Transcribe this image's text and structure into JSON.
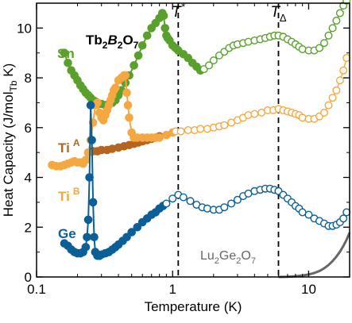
{
  "chart_data": {
    "type": "scatter",
    "title": "Tb2B2O7",
    "title_parts": {
      "pre": "Tb",
      "s1": "2",
      "mid": "B",
      "s2": "2",
      "post": "O",
      "s3": "7"
    },
    "xlabel": "Temperature (K)",
    "ylabel_parts": {
      "main": "Heat Capacity (J/mol",
      "sub": "Tb",
      "end": " K)"
    },
    "x_scale": "log",
    "xlim": [
      0.1,
      20
    ],
    "ylim": [
      0,
      11
    ],
    "x_ticks": [
      0.1,
      1,
      10
    ],
    "x_tick_labels": [
      "0.1",
      "1",
      "10"
    ],
    "y_ticks": [
      0,
      2,
      4,
      6,
      8,
      10
    ],
    "y_tick_labels": [
      "0",
      "2",
      "4",
      "6",
      "8",
      "10"
    ],
    "grid": false,
    "vlines": [
      {
        "x": 1.1,
        "label_main": "T",
        "label_sup": "*"
      },
      {
        "x": 6.0,
        "label_main": "T",
        "label_sub": "Δ"
      }
    ],
    "colors": {
      "Sn": "#5aa02c",
      "TiA": "#b5651d",
      "TiB": "#f5a742",
      "Ge": "#0a5f96",
      "Lu": "#666666",
      "axis": "#000000"
    },
    "series": [
      {
        "name": "Sn",
        "key": "Sn",
        "filled": {
          "x": [
            0.16,
            0.17,
            0.18,
            0.19,
            0.2,
            0.21,
            0.22,
            0.23,
            0.24,
            0.25,
            0.26,
            0.27,
            0.28,
            0.3,
            0.32,
            0.34,
            0.36,
            0.38,
            0.4,
            0.42,
            0.45,
            0.48,
            0.52,
            0.56,
            0.6,
            0.65,
            0.7,
            0.75,
            0.8,
            0.84,
            0.86,
            0.88,
            0.9,
            0.92,
            0.95,
            1.0,
            1.05,
            1.1,
            1.2,
            1.3,
            1.4,
            1.5,
            1.6
          ],
          "y": [
            9.0,
            8.6,
            8.3,
            8.1,
            7.9,
            7.7,
            7.55,
            7.4,
            7.3,
            7.2,
            7.1,
            7.05,
            7.0,
            6.95,
            6.9,
            6.95,
            7.0,
            7.1,
            7.3,
            7.5,
            7.8,
            8.1,
            8.5,
            8.9,
            9.3,
            9.7,
            10.0,
            10.2,
            10.4,
            10.6,
            10.5,
            10.0,
            9.7,
            9.6,
            9.5,
            9.3,
            9.2,
            9.1,
            8.95,
            8.8,
            8.6,
            8.45,
            8.3
          ]
        },
        "open": {
          "x": [
            1.7,
            1.85,
            2.0,
            2.2,
            2.4,
            2.6,
            2.8,
            3.0,
            3.3,
            3.6,
            4.0,
            4.4,
            4.8,
            5.2,
            5.6,
            6.0,
            6.5,
            7.0,
            7.5,
            8.0,
            8.5,
            9.0,
            10.0,
            11.0,
            12.0,
            13.0,
            14.0,
            15.0,
            16.0,
            17.0,
            18.0,
            19.0
          ],
          "y": [
            8.35,
            8.5,
            8.7,
            8.9,
            9.05,
            9.2,
            9.3,
            9.35,
            9.4,
            9.45,
            9.5,
            9.55,
            9.6,
            9.65,
            9.7,
            9.7,
            9.65,
            9.55,
            9.45,
            9.35,
            9.25,
            9.15,
            9.1,
            9.1,
            9.2,
            9.4,
            9.7,
            10.0,
            10.3,
            10.6,
            10.9,
            11.1
          ]
        }
      },
      {
        "name": "Ti",
        "name_sup": "A",
        "key": "TiA",
        "filled": {
          "x": [
            0.24,
            0.26,
            0.28,
            0.3,
            0.33,
            0.36,
            0.4,
            0.44,
            0.48,
            0.52,
            0.56,
            0.6,
            0.65,
            0.7,
            0.75,
            0.8
          ],
          "y": [
            5.0,
            5.05,
            5.05,
            5.1,
            5.1,
            5.15,
            5.2,
            5.25,
            5.3,
            5.35,
            5.4,
            5.45,
            5.5,
            5.55,
            5.6,
            5.65
          ]
        }
      },
      {
        "name": "Ti",
        "name_sup": "B",
        "key": "TiB",
        "filled": {
          "x": [
            0.13,
            0.14,
            0.15,
            0.16,
            0.17,
            0.18,
            0.19,
            0.2,
            0.21,
            0.22,
            0.23,
            0.24,
            0.25,
            0.26,
            0.27,
            0.28,
            0.29,
            0.3,
            0.31,
            0.32,
            0.33,
            0.34,
            0.35,
            0.36,
            0.37,
            0.38,
            0.4,
            0.42,
            0.44,
            0.45,
            0.46,
            0.47,
            0.48,
            0.5,
            0.52,
            0.55,
            0.6,
            0.65,
            0.7,
            0.75,
            0.8,
            0.9,
            1.0
          ],
          "y": [
            4.5,
            4.45,
            4.45,
            4.5,
            4.55,
            4.6,
            4.65,
            4.6,
            4.6,
            4.55,
            4.7,
            5.0,
            5.5,
            6.2,
            6.9,
            7.0,
            6.6,
            6.4,
            6.3,
            6.5,
            6.7,
            6.9,
            7.1,
            7.3,
            7.5,
            7.6,
            7.9,
            8.0,
            8.1,
            8.1,
            7.4,
            6.9,
            6.4,
            5.8,
            5.6,
            5.6,
            5.6,
            5.6,
            5.6,
            5.6,
            5.6,
            5.7,
            5.8
          ]
        },
        "open": {
          "x": [
            1.05,
            1.15,
            1.3,
            1.45,
            1.6,
            1.8,
            2.0,
            2.2,
            2.4,
            2.7,
            3.0,
            3.3,
            3.6,
            4.0,
            4.5,
            5.0,
            5.5,
            6.0,
            6.5,
            7.0,
            7.5,
            8.0,
            8.5,
            9.0,
            10.0,
            11.0,
            12.0,
            13.0,
            14.0,
            15.0,
            16.0,
            17.0,
            18.0,
            19.0
          ],
          "y": [
            5.85,
            5.85,
            5.9,
            5.9,
            5.95,
            5.95,
            6.0,
            6.05,
            6.1,
            6.2,
            6.3,
            6.4,
            6.5,
            6.55,
            6.6,
            6.7,
            6.7,
            6.75,
            6.7,
            6.65,
            6.6,
            6.55,
            6.5,
            6.4,
            6.35,
            6.35,
            6.45,
            6.6,
            6.9,
            7.2,
            7.5,
            7.9,
            8.3,
            8.8
          ]
        }
      },
      {
        "name": "Ge",
        "key": "Ge",
        "filled": {
          "x": [
            0.16,
            0.17,
            0.18,
            0.19,
            0.2,
            0.21,
            0.22,
            0.23,
            0.235,
            0.24,
            0.245,
            0.25,
            0.255,
            0.26,
            0.265,
            0.27,
            0.28,
            0.29,
            0.3,
            0.32,
            0.34,
            0.36,
            0.38,
            0.4,
            0.43,
            0.46,
            0.5,
            0.55,
            0.6,
            0.65,
            0.7,
            0.75,
            0.8,
            0.85
          ],
          "y": [
            1.35,
            1.25,
            1.1,
            1.0,
            0.95,
            0.95,
            1.0,
            1.2,
            1.6,
            2.3,
            4.0,
            6.9,
            5.5,
            3.0,
            1.6,
            1.0,
            0.85,
            0.85,
            0.9,
            0.95,
            1.0,
            1.1,
            1.2,
            1.3,
            1.45,
            1.6,
            1.8,
            2.0,
            2.2,
            2.35,
            2.5,
            2.6,
            2.75,
            2.85
          ]
        },
        "open": {
          "x": [
            0.9,
            1.0,
            1.1,
            1.2,
            1.35,
            1.5,
            1.65,
            1.8,
            2.0,
            2.2,
            2.4,
            2.7,
            3.0,
            3.3,
            3.6,
            4.0,
            4.4,
            4.8,
            5.2,
            5.6,
            6.0,
            6.5,
            7.0,
            7.5,
            8.0,
            8.5,
            9.0,
            10.0,
            11.0,
            12.0,
            13.0,
            14.0,
            15.0,
            16.0,
            17.0,
            18.0,
            19.0
          ],
          "y": [
            2.95,
            3.15,
            3.3,
            3.2,
            3.05,
            2.9,
            2.8,
            2.75,
            2.7,
            2.7,
            2.8,
            2.95,
            3.1,
            3.25,
            3.35,
            3.45,
            3.5,
            3.55,
            3.55,
            3.5,
            3.45,
            3.3,
            3.15,
            3.0,
            2.85,
            2.75,
            2.6,
            2.5,
            2.35,
            2.25,
            2.15,
            2.05,
            2.05,
            2.1,
            2.2,
            2.35,
            2.6
          ]
        }
      },
      {
        "name": "Lu2Ge2O7",
        "key": "Lu",
        "label_parts": {
          "pre": "Lu",
          "s1": "2",
          "mid": "Ge",
          "s2": "2",
          "post": "O",
          "s3": "7"
        },
        "line": {
          "x": [
            6.0,
            7.0,
            8.0,
            9.0,
            10.0,
            11.0,
            12.0,
            13.0,
            14.0,
            15.0,
            16.0,
            17.0,
            18.0,
            19.0,
            20.0
          ],
          "y": [
            0.0,
            0.01,
            0.03,
            0.06,
            0.1,
            0.16,
            0.24,
            0.35,
            0.48,
            0.64,
            0.82,
            1.02,
            1.25,
            1.5,
            1.78
          ]
        }
      }
    ]
  }
}
